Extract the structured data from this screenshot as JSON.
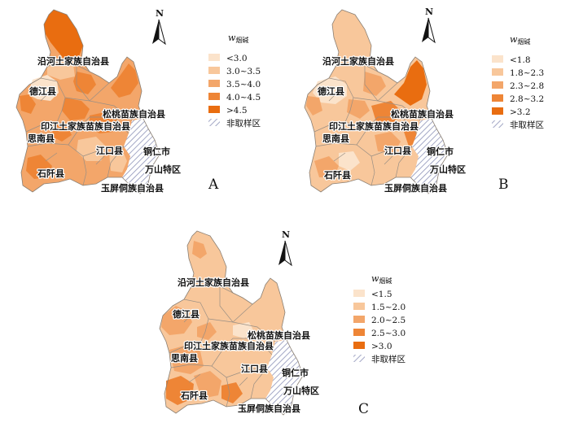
{
  "north_label": "N",
  "legend_title_w": "w",
  "legend_title_sub": "烟碱",
  "non_sample_label": "非取样区",
  "colors": {
    "c1": "#fbe3cb",
    "c2": "#f8c79b",
    "c3": "#f3a66a",
    "c4": "#ee8536",
    "c5": "#e96d10",
    "hatch": "#8d93b8"
  },
  "place_labels": {
    "yanhe": "沿河土家族自治县",
    "dejiang": "德江县",
    "songtao": "松桃苗族自治县",
    "yinjiang": "印江土家族苗族自治县",
    "sinan": "思南县",
    "jiangkou": "江口县",
    "tongren": "铜仁市",
    "shiqian": "石阡县",
    "wanshan": "万山特区",
    "yuping": "玉屏侗族自治县"
  },
  "panels": [
    {
      "label": "A",
      "classes": [
        "<3.0",
        "3.0~3.5",
        "3.5~4.0",
        "4.0~4.5",
        ">4.5"
      ]
    },
    {
      "label": "B",
      "classes": [
        "<1.8",
        "1.8~2.3",
        "2.3~2.8",
        "2.8~3.2",
        ">3.2"
      ]
    },
    {
      "label": "C",
      "classes": [
        "<1.5",
        "1.5~2.0",
        "2.0~2.5",
        "2.5~3.0",
        ">3.0"
      ]
    }
  ]
}
